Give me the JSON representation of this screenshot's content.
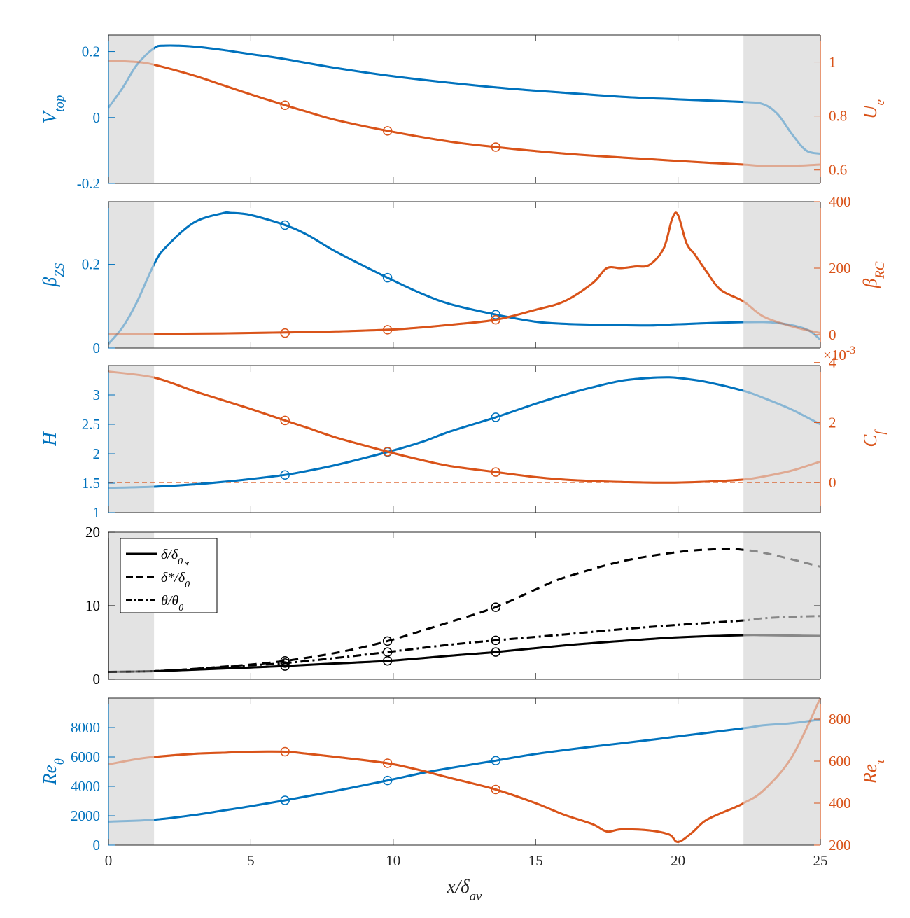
{
  "figure": {
    "x_axis": {
      "label": "x/δav",
      "label_main": "x/δ",
      "label_sub": "av",
      "range": [
        0,
        25
      ],
      "ticks": [
        0,
        5,
        10,
        15,
        20,
        25
      ],
      "shaded_regions": [
        [
          0,
          1.6
        ],
        [
          22.3,
          25
        ]
      ]
    },
    "colors": {
      "left": "#0072BD",
      "right": "#D95319",
      "shade": "#e3e3e3",
      "black": "#000000"
    }
  },
  "chart_data": [
    {
      "type": "line",
      "panel": "velocity",
      "left_axis": {
        "label": "Vtop",
        "label_main": "V",
        "label_sub": "top",
        "range": [
          -0.2,
          0.25
        ],
        "ticks": [
          -0.2,
          0,
          0.2
        ],
        "tick_labels": [
          "-0.2",
          "0",
          "0.2"
        ]
      },
      "right_axis": {
        "label": "Ue",
        "label_main": "U",
        "label_sub": "e",
        "range": [
          0.55,
          1.1
        ],
        "ticks": [
          0.6,
          0.8,
          1
        ],
        "tick_labels": [
          "0.6",
          "0.8",
          "1"
        ]
      },
      "series": [
        {
          "name": "Vtop",
          "axis": "left",
          "color": "#0072BD",
          "x": [
            0,
            0.5,
            1,
            1.6,
            2,
            3,
            4,
            5,
            6,
            8,
            10,
            12,
            14,
            16,
            18,
            20,
            22.3,
            23,
            23.5,
            24,
            24.5,
            25
          ],
          "y": [
            0.03,
            0.09,
            0.16,
            0.21,
            0.218,
            0.215,
            0.205,
            0.192,
            0.18,
            0.15,
            0.125,
            0.105,
            0.088,
            0.075,
            0.063,
            0.055,
            0.047,
            0.04,
            0.01,
            -0.05,
            -0.1,
            -0.11
          ],
          "markers": []
        },
        {
          "name": "Ue",
          "axis": "right",
          "color": "#D95319",
          "x": [
            0,
            1,
            1.6,
            3,
            4,
            5,
            6.2,
            7,
            8,
            9.8,
            12,
            13.6,
            15,
            17,
            19,
            21,
            22.3,
            23,
            24,
            25
          ],
          "y": [
            1.005,
            1.0,
            0.99,
            0.95,
            0.915,
            0.88,
            0.84,
            0.815,
            0.785,
            0.745,
            0.705,
            0.685,
            0.67,
            0.653,
            0.64,
            0.627,
            0.62,
            0.615,
            0.615,
            0.62
          ],
          "markers": [
            [
              6.2,
              0.84
            ],
            [
              9.8,
              0.745
            ],
            [
              13.6,
              0.685
            ]
          ]
        }
      ]
    },
    {
      "type": "line",
      "panel": "pressure-gradient",
      "left_axis": {
        "label": "βZS",
        "label_main": "β",
        "label_sub": "ZS",
        "range": [
          0,
          0.35
        ],
        "ticks": [
          0,
          0.2
        ],
        "tick_labels": [
          "0",
          "0.2"
        ]
      },
      "right_axis": {
        "label": "βRC",
        "label_main": "β",
        "label_sub": "RC",
        "range": [
          -40,
          400
        ],
        "ticks": [
          0,
          200,
          400
        ],
        "tick_labels": [
          "0",
          "200",
          "400"
        ]
      },
      "series": [
        {
          "name": "βZS",
          "axis": "left",
          "color": "#0072BD",
          "x": [
            0,
            0.5,
            1,
            1.6,
            2,
            3,
            4,
            4.3,
            5,
            6.2,
            7,
            8,
            9.8,
            11,
            12,
            13.6,
            15,
            16,
            17,
            19,
            20,
            22.3,
            23.5,
            24.5,
            25
          ],
          "y": [
            0.01,
            0.05,
            0.11,
            0.2,
            0.24,
            0.3,
            0.322,
            0.323,
            0.318,
            0.294,
            0.27,
            0.23,
            0.168,
            0.13,
            0.105,
            0.08,
            0.063,
            0.058,
            0.056,
            0.054,
            0.057,
            0.062,
            0.06,
            0.045,
            0.02
          ],
          "markers": [
            [
              6.2,
              0.294
            ],
            [
              9.8,
              0.168
            ],
            [
              13.6,
              0.08
            ]
          ]
        },
        {
          "name": "βRC",
          "axis": "right",
          "color": "#D95319",
          "x": [
            0,
            2,
            4,
            6.2,
            8,
            9.8,
            11,
            12,
            13.6,
            15,
            16,
            17,
            17.5,
            18,
            18.5,
            19,
            19.5,
            19.8,
            20,
            20.3,
            20.6,
            21,
            21.5,
            22.3,
            23,
            24,
            25
          ],
          "y": [
            3,
            3,
            4,
            7,
            10,
            15,
            22,
            30,
            45,
            75,
            100,
            155,
            200,
            200,
            205,
            210,
            260,
            350,
            360,
            275,
            240,
            190,
            135,
            100,
            55,
            25,
            5
          ],
          "markers": [
            [
              6.2,
              5
            ],
            [
              9.8,
              15
            ],
            [
              13.6,
              45
            ]
          ]
        }
      ]
    },
    {
      "type": "line",
      "panel": "shape-factor-friction",
      "scale_note": "×10-3",
      "scale_main": "×10",
      "scale_exp": "-3",
      "left_axis": {
        "label": "H",
        "label_main": "H",
        "label_sub": "",
        "range": [
          1,
          3.5
        ],
        "ticks": [
          1,
          1.5,
          2,
          2.5,
          3
        ],
        "tick_labels": [
          "1",
          "1.5",
          "2",
          "2.5",
          "3"
        ]
      },
      "right_axis": {
        "label": "Cf",
        "label_main": "C",
        "label_sub": "f",
        "range": [
          -1,
          3.9
        ],
        "ticks": [
          0,
          2,
          4
        ],
        "tick_labels": [
          "0",
          "2",
          "4"
        ]
      },
      "series": [
        {
          "name": "H",
          "axis": "left",
          "color": "#0072BD",
          "x": [
            0,
            1.6,
            3,
            4,
            5,
            6.2,
            7,
            8,
            9.8,
            11,
            12,
            13.6,
            15,
            16,
            17,
            18,
            19,
            19.6,
            20,
            21,
            22.3,
            23,
            24,
            25
          ],
          "y": [
            1.42,
            1.44,
            1.48,
            1.52,
            1.57,
            1.64,
            1.71,
            1.81,
            2.03,
            2.2,
            2.38,
            2.62,
            2.85,
            3.0,
            3.13,
            3.24,
            3.29,
            3.3,
            3.29,
            3.22,
            3.07,
            2.95,
            2.75,
            2.5
          ],
          "markers": [
            [
              6.2,
              1.64
            ],
            [
              9.8,
              2.03
            ],
            [
              13.6,
              2.62
            ]
          ]
        },
        {
          "name": "Cf",
          "axis": "right",
          "color": "#D95319",
          "x": [
            0,
            1.6,
            3,
            4,
            5,
            6.2,
            7,
            8,
            9.8,
            11,
            12,
            13.6,
            15,
            16,
            17,
            18,
            19,
            20,
            21,
            22.3,
            23,
            24,
            25
          ],
          "y": [
            3.7,
            3.5,
            3.05,
            2.75,
            2.45,
            2.07,
            1.82,
            1.5,
            1.03,
            0.75,
            0.55,
            0.35,
            0.18,
            0.1,
            0.05,
            0.02,
            0.0,
            0.0,
            0.03,
            0.1,
            0.2,
            0.4,
            0.7
          ],
          "markers": [
            [
              6.2,
              2.07
            ],
            [
              9.8,
              1.03
            ],
            [
              13.6,
              0.35
            ]
          ]
        }
      ],
      "reference_lines": [
        {
          "axis": "right",
          "y": 0,
          "style": "dashed",
          "color": "#D95319"
        }
      ]
    },
    {
      "type": "line",
      "panel": "thickness",
      "left_axis": {
        "label": "",
        "range": [
          0,
          20
        ],
        "ticks": [
          0,
          10,
          20
        ],
        "tick_labels": [
          "0",
          "10",
          "20"
        ]
      },
      "legend": {
        "placement": "top-left",
        "entries": [
          {
            "label_main": "δ/δ",
            "label_sub": "0",
            "label_sup": "",
            "style": "solid"
          },
          {
            "label_main": "δ*/δ",
            "label_sub": "0",
            "label_sup": "*",
            "style": "dashed"
          },
          {
            "label_main": "θ/θ",
            "label_sub": "0",
            "label_sup": "",
            "style": "dashdot"
          }
        ]
      },
      "series": [
        {
          "name": "δ/δ0",
          "axis": "left",
          "color": "#000000",
          "style": "solid",
          "x": [
            0,
            1.6,
            3,
            4,
            5,
            6.2,
            8,
            9.8,
            12,
            13.6,
            16,
            18,
            20,
            22.3,
            23,
            24,
            25
          ],
          "y": [
            1.0,
            1.1,
            1.3,
            1.45,
            1.6,
            1.8,
            2.15,
            2.5,
            3.2,
            3.7,
            4.6,
            5.2,
            5.7,
            6.0,
            6.0,
            5.95,
            5.9
          ],
          "markers": [
            [
              6.2,
              1.8
            ],
            [
              9.8,
              2.5
            ],
            [
              13.6,
              3.7
            ]
          ]
        },
        {
          "name": "δ*/δ0*",
          "axis": "left",
          "color": "#000000",
          "style": "dashed",
          "x": [
            0,
            1.6,
            3,
            4,
            5,
            6.2,
            8,
            9.8,
            12,
            13.6,
            15,
            16,
            18,
            20,
            21.5,
            22.3,
            23,
            24,
            25
          ],
          "y": [
            1.0,
            1.1,
            1.4,
            1.7,
            2.0,
            2.5,
            3.6,
            5.2,
            7.8,
            9.8,
            12.2,
            13.8,
            16.0,
            17.3,
            17.7,
            17.6,
            17.2,
            16.3,
            15.3
          ],
          "markers": [
            [
              6.2,
              2.5
            ],
            [
              9.8,
              5.2
            ],
            [
              13.6,
              9.8
            ]
          ]
        },
        {
          "name": "θ/θ0",
          "axis": "left",
          "color": "#000000",
          "style": "dashdot",
          "x": [
            0,
            1.6,
            3,
            4,
            5,
            6.2,
            8,
            9.8,
            12,
            13.6,
            16,
            18,
            20,
            22.3,
            23,
            24,
            25
          ],
          "y": [
            1.0,
            1.1,
            1.4,
            1.65,
            1.9,
            2.2,
            2.9,
            3.7,
            4.7,
            5.3,
            6.1,
            6.8,
            7.4,
            8.0,
            8.3,
            8.5,
            8.6
          ],
          "markers": [
            [
              6.2,
              2.2
            ],
            [
              9.8,
              3.7
            ],
            [
              13.6,
              5.3
            ]
          ]
        }
      ]
    },
    {
      "type": "line",
      "panel": "reynolds",
      "left_axis": {
        "label": "Reθ",
        "label_main": "Re",
        "label_sub": "θ",
        "range": [
          0,
          10000
        ],
        "ticks": [
          0,
          2000,
          4000,
          6000,
          8000
        ],
        "tick_labels": [
          "0",
          "2000",
          "4000",
          "6000",
          "8000"
        ]
      },
      "right_axis": {
        "label": "Reτ",
        "label_main": "Re",
        "label_sub": "τ",
        "range": [
          200,
          900
        ],
        "ticks": [
          200,
          400,
          600,
          800
        ],
        "tick_labels": [
          "200",
          "400",
          "600",
          "800"
        ]
      },
      "series": [
        {
          "name": "Reθ",
          "axis": "left",
          "color": "#0072BD",
          "x": [
            0,
            1.6,
            3,
            4,
            5,
            6.2,
            8,
            9.8,
            11,
            12,
            13.6,
            15,
            17,
            19,
            20,
            22.3,
            23,
            24,
            25
          ],
          "y": [
            1600,
            1730,
            2050,
            2350,
            2650,
            3050,
            3700,
            4400,
            4900,
            5250,
            5750,
            6200,
            6700,
            7150,
            7400,
            7950,
            8150,
            8300,
            8550
          ],
          "markers": [
            [
              6.2,
              3050
            ],
            [
              9.8,
              4400
            ],
            [
              13.6,
              5750
            ]
          ]
        },
        {
          "name": "Reτ",
          "axis": "right",
          "color": "#D95319",
          "x": [
            0,
            1,
            1.6,
            3,
            4,
            5,
            6.2,
            7,
            8,
            9.8,
            11,
            12,
            13.6,
            15,
            16,
            17,
            17.5,
            18,
            19,
            19.7,
            20,
            20.5,
            21,
            22,
            22.3,
            23,
            24,
            25
          ],
          "y": [
            585,
            610,
            620,
            635,
            640,
            645,
            645,
            635,
            620,
            590,
            555,
            520,
            465,
            400,
            345,
            300,
            265,
            275,
            270,
            250,
            215,
            260,
            320,
            380,
            400,
            460,
            620,
            900
          ],
          "markers": [
            [
              6.2,
              645
            ],
            [
              9.8,
              590
            ],
            [
              13.6,
              465
            ]
          ]
        }
      ]
    }
  ]
}
